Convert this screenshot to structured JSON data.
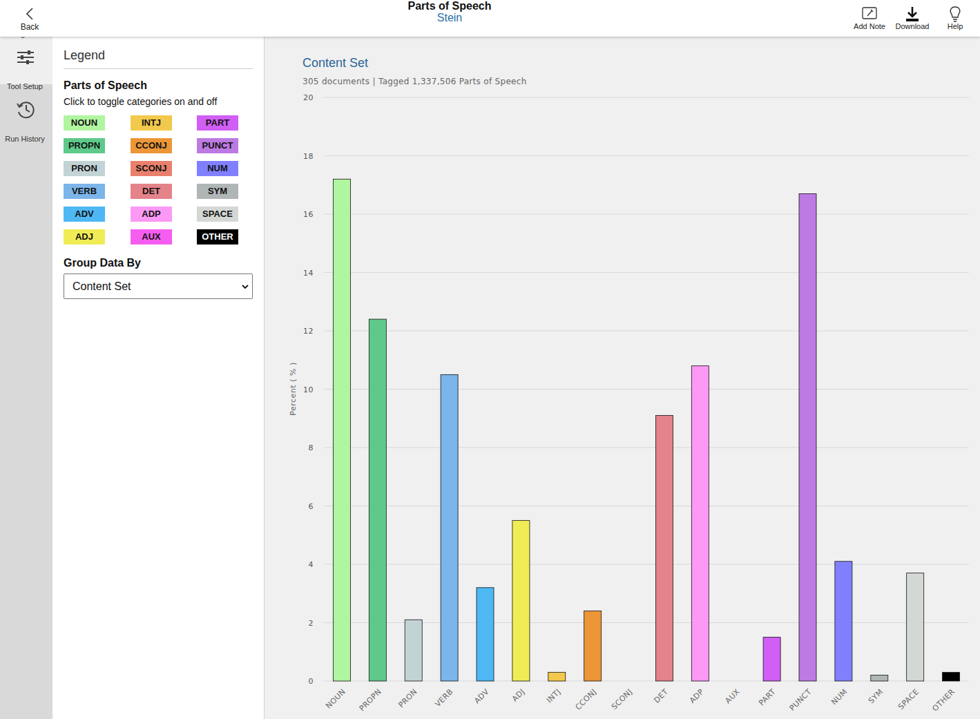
{
  "header": {
    "back": "Back",
    "title": "Parts of Speech",
    "subtitle": "Stein",
    "actions": [
      "Add Note",
      "Download",
      "Help"
    ]
  },
  "sidebar": {
    "tabs": [
      "Legend",
      "Tool Setup",
      "Run History"
    ]
  },
  "panel": {
    "heading": "Legend",
    "section_title": "Parts of Speech",
    "instruction": "Click to toggle categories on and off",
    "group_label": "Group Data By",
    "group_value": "Content Set"
  },
  "chart_data": {
    "type": "bar",
    "title": "Content Set",
    "subtitle": "305 documents | Tagged 1,337,506 Parts of Speech",
    "y_label": "Percent ( % )",
    "categories": [
      "NOUN",
      "PROPN",
      "PRON",
      "VERB",
      "ADV",
      "ADJ",
      "INTJ",
      "CCONJ",
      "SCONJ",
      "DET",
      "ADP",
      "AUX",
      "PART",
      "PUNCT",
      "NUM",
      "SYM",
      "SPACE",
      "OTHER"
    ],
    "values": [
      17.2,
      12.4,
      2.1,
      10.5,
      3.2,
      5.5,
      0.3,
      2.4,
      0,
      9.1,
      10.8,
      0,
      1.5,
      16.7,
      4.1,
      0.2,
      3.7,
      0.3
    ],
    "colors": [
      "#b0f5a0",
      "#5ec98a",
      "#c1d3d5",
      "#7bb5ea",
      "#4db8f4",
      "#f0ec55",
      "#f2c94c",
      "#ec9637",
      "#e8806c",
      "#e4838a",
      "#fb99f5",
      "#f55df0",
      "#d15ef5",
      "#bd7ae3",
      "#8080ff",
      "#b0b5b6",
      "#d4d8d5",
      "#000000"
    ],
    "ylim": [
      0,
      20
    ],
    "yticks": [
      0,
      2,
      4,
      6,
      8,
      10,
      12,
      14,
      16,
      18,
      20
    ],
    "grid": true
  }
}
